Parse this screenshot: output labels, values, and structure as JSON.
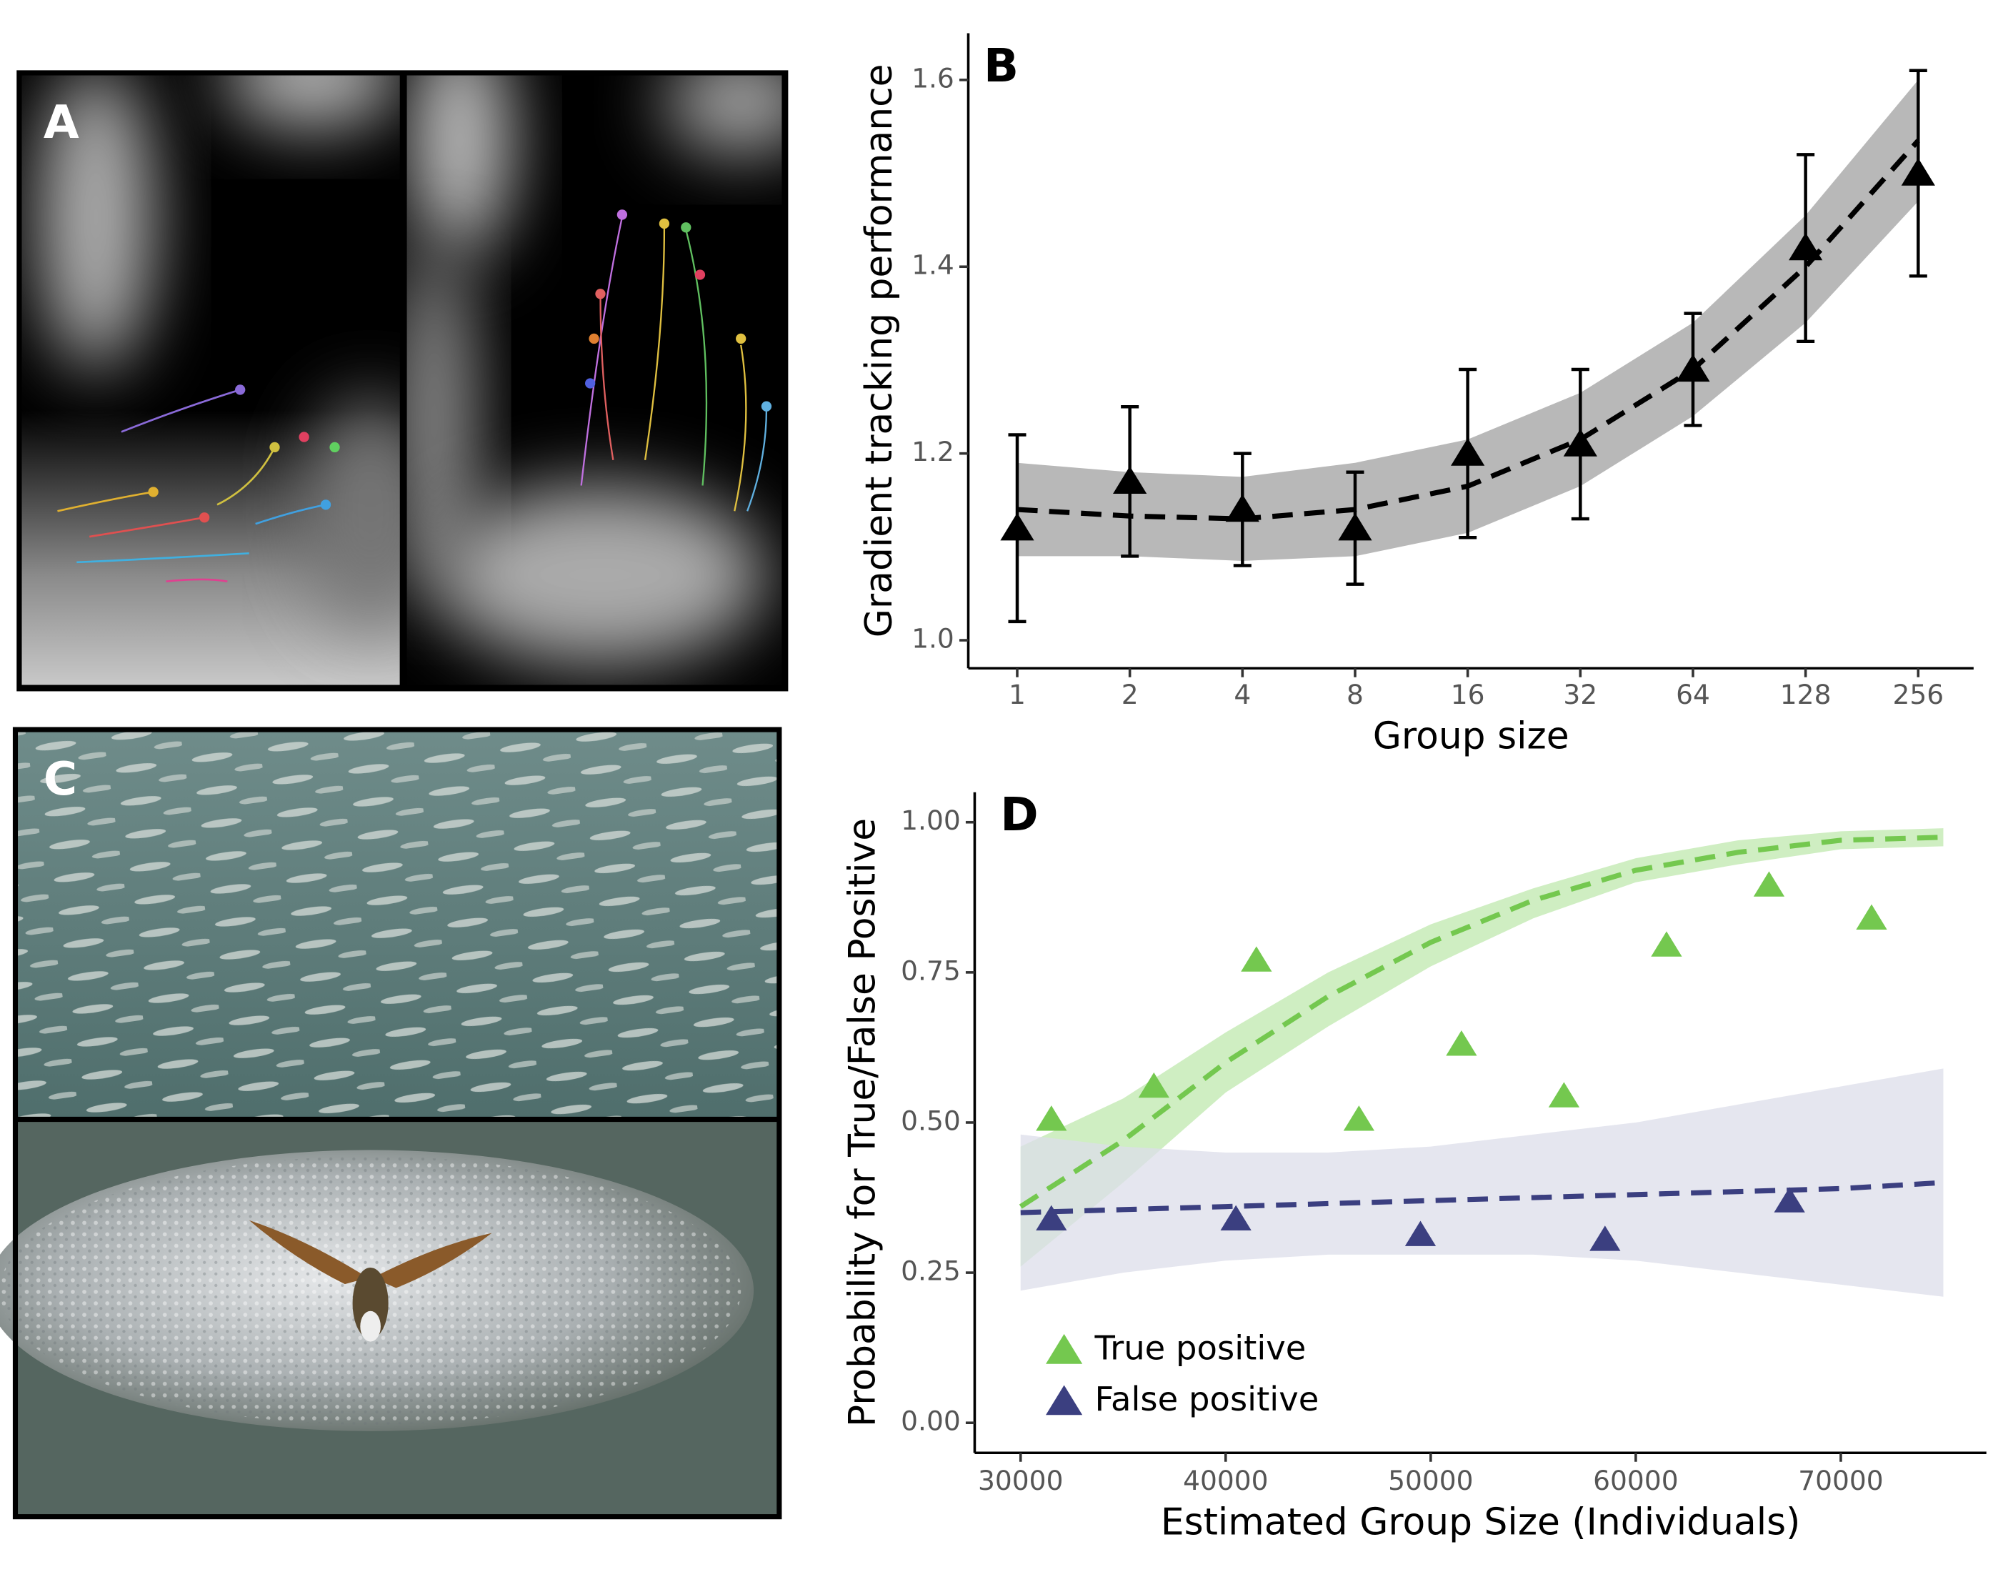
{
  "panels": [
    {
      "label": "A"
    },
    {
      "label": "C"
    }
  ],
  "chart_data": [
    {
      "type": "scatter",
      "panel_label": "B",
      "x_label": "Group size",
      "y_label": "Gradient tracking performance",
      "xscale": "log",
      "x": [
        1,
        2,
        4,
        8,
        16,
        32,
        64,
        128,
        256
      ],
      "xlim": [
        0.74,
        360
      ],
      "xticks": [
        1,
        2,
        4,
        8,
        16,
        32,
        64,
        128,
        256
      ],
      "ylim": [
        0.97,
        1.65
      ],
      "yticks": [
        {
          "value": 1.0,
          "label": "1.0"
        },
        1.2,
        1.4,
        1.6
      ],
      "series": [
        {
          "color": "#000000",
          "values": [
            1.12,
            1.17,
            1.14,
            1.12,
            1.2,
            1.21,
            1.29,
            1.42,
            1.5
          ],
          "errors": [
            0.1,
            0.08,
            0.06,
            0.06,
            0.09,
            0.08,
            0.06,
            0.1,
            0.11
          ],
          "fit": {
            "values": [
              1.14,
              1.133,
              1.13,
              1.14,
              1.165,
              1.215,
              1.29,
              1.4,
              1.535
            ],
            "lower": [
              1.09,
              1.09,
              1.085,
              1.09,
              1.115,
              1.165,
              1.24,
              1.34,
              1.47
            ],
            "upper": [
              1.19,
              1.18,
              1.175,
              1.19,
              1.215,
              1.265,
              1.34,
              1.455,
              1.6
            ],
            "band_color": "#a0a0a0"
          }
        }
      ]
    },
    {
      "type": "scatter",
      "panel_label": "D",
      "x_label": "Estimated Group Size (Individuals)",
      "y_label": "Probability for True/False Positive",
      "xlim": [
        27760,
        77100
      ],
      "xticks": [
        30000,
        40000,
        50000,
        60000,
        70000
      ],
      "ylim": [
        -0.05,
        1.05
      ],
      "yticks": [
        {
          "value": 0,
          "label": "0.00"
        },
        0.25,
        {
          "value": 0.5,
          "label": "0.50"
        },
        0.75,
        {
          "value": 1,
          "label": "1.00"
        }
      ],
      "legend": "lower left",
      "series": [
        {
          "name": "True positive",
          "color": "#74c84f",
          "x": [
            31500,
            36500,
            41500,
            46500,
            51500,
            56500,
            61500,
            66500,
            71500
          ],
          "values": [
            0.505,
            0.56,
            0.77,
            0.505,
            0.63,
            0.544,
            0.795,
            0.895,
            0.84
          ],
          "fit": {
            "x": [
              30000,
              35000,
              40000,
              45000,
              50000,
              55000,
              60000,
              65000,
              70000,
              75000
            ],
            "values": [
              0.36,
              0.47,
              0.6,
              0.71,
              0.8,
              0.87,
              0.92,
              0.95,
              0.97,
              0.975
            ],
            "lower": [
              0.26,
              0.4,
              0.55,
              0.66,
              0.76,
              0.84,
              0.9,
              0.93,
              0.955,
              0.96
            ],
            "upper": [
              0.46,
              0.54,
              0.65,
              0.75,
              0.83,
              0.89,
              0.94,
              0.97,
              0.985,
              0.99
            ],
            "band_color": "#bfe8ae"
          }
        },
        {
          "name": "False positive",
          "color": "#3b3f80",
          "x": [
            31500,
            40500,
            49500,
            58500,
            67500
          ],
          "values": [
            0.339,
            0.339,
            0.313,
            0.305,
            0.369
          ],
          "fit": {
            "x": [
              30000,
              35000,
              40000,
              45000,
              50000,
              55000,
              60000,
              65000,
              70000,
              75000
            ],
            "values": [
              0.35,
              0.355,
              0.36,
              0.365,
              0.37,
              0.375,
              0.38,
              0.385,
              0.39,
              0.4
            ],
            "lower": [
              0.22,
              0.25,
              0.27,
              0.28,
              0.28,
              0.28,
              0.27,
              0.25,
              0.23,
              0.21
            ],
            "upper": [
              0.48,
              0.46,
              0.45,
              0.45,
              0.46,
              0.48,
              0.5,
              0.53,
              0.56,
              0.59
            ],
            "band_color": "#dcdde9"
          }
        }
      ]
    }
  ]
}
